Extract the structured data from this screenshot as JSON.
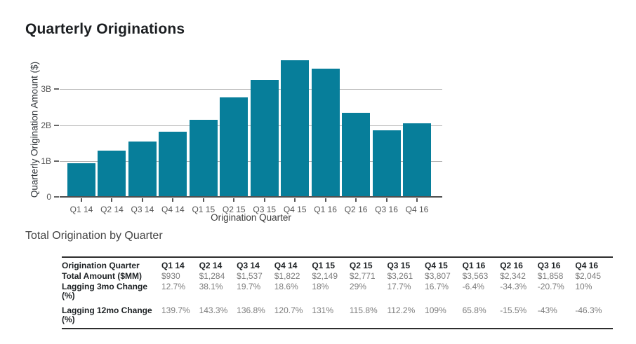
{
  "page": {
    "title": "Quarterly Originations"
  },
  "chart_data": {
    "type": "bar",
    "title": "Quarterly Originations",
    "xlabel": "Origination Quarter",
    "ylabel": "Quarterly Origination Amount ($)",
    "categories": [
      "Q1 14",
      "Q2 14",
      "Q3 14",
      "Q4 14",
      "Q1 15",
      "Q2 15",
      "Q3 15",
      "Q4 15",
      "Q1 16",
      "Q2 16",
      "Q3 16",
      "Q4 16"
    ],
    "values_billions": [
      0.93,
      1.284,
      1.537,
      1.822,
      2.149,
      2.771,
      3.261,
      3.807,
      3.563,
      2.342,
      1.858,
      2.045
    ],
    "ylim_billions": [
      0,
      4
    ],
    "y_ticks": [
      {
        "value": 0,
        "label": "0"
      },
      {
        "value": 1,
        "label": "1B"
      },
      {
        "value": 2,
        "label": "2B"
      },
      {
        "value": 3,
        "label": "3B"
      }
    ],
    "grid": true,
    "legend": "none",
    "bar_color": "#077e9a"
  },
  "table": {
    "title": "Total Origination by Quarter",
    "header": [
      "Origination Quarter",
      "Q1 14",
      "Q2 14",
      "Q3 14",
      "Q4 14",
      "Q1 15",
      "Q2 15",
      "Q3 15",
      "Q4 15",
      "Q1 16",
      "Q2 16",
      "Q3 16",
      "Q4 16"
    ],
    "rows": [
      {
        "label": "Total Amount ($MM)",
        "values": [
          "$930",
          "$1,284",
          "$1,537",
          "$1,822",
          "$2,149",
          "$2,771",
          "$3,261",
          "$3,807",
          "$3,563",
          "$2,342",
          "$1,858",
          "$2,045"
        ]
      },
      {
        "label": "Lagging 3mo Change (%)",
        "values": [
          "12.7%",
          "38.1%",
          "19.7%",
          "18.6%",
          "18%",
          "29%",
          "17.7%",
          "16.7%",
          "-6.4%",
          "-34.3%",
          "-20.7%",
          "10%"
        ]
      },
      {
        "label": "Lagging 12mo Change (%)",
        "values": [
          "139.7%",
          "143.3%",
          "136.8%",
          "120.7%",
          "131%",
          "115.8%",
          "112.2%",
          "109%",
          "65.8%",
          "-15.5%",
          "-43%",
          "-46.3%"
        ]
      }
    ],
    "colors": {
      "border": "#2e2e2e",
      "label_text": "#1d2124",
      "value_text": "#7c7c7c"
    }
  }
}
